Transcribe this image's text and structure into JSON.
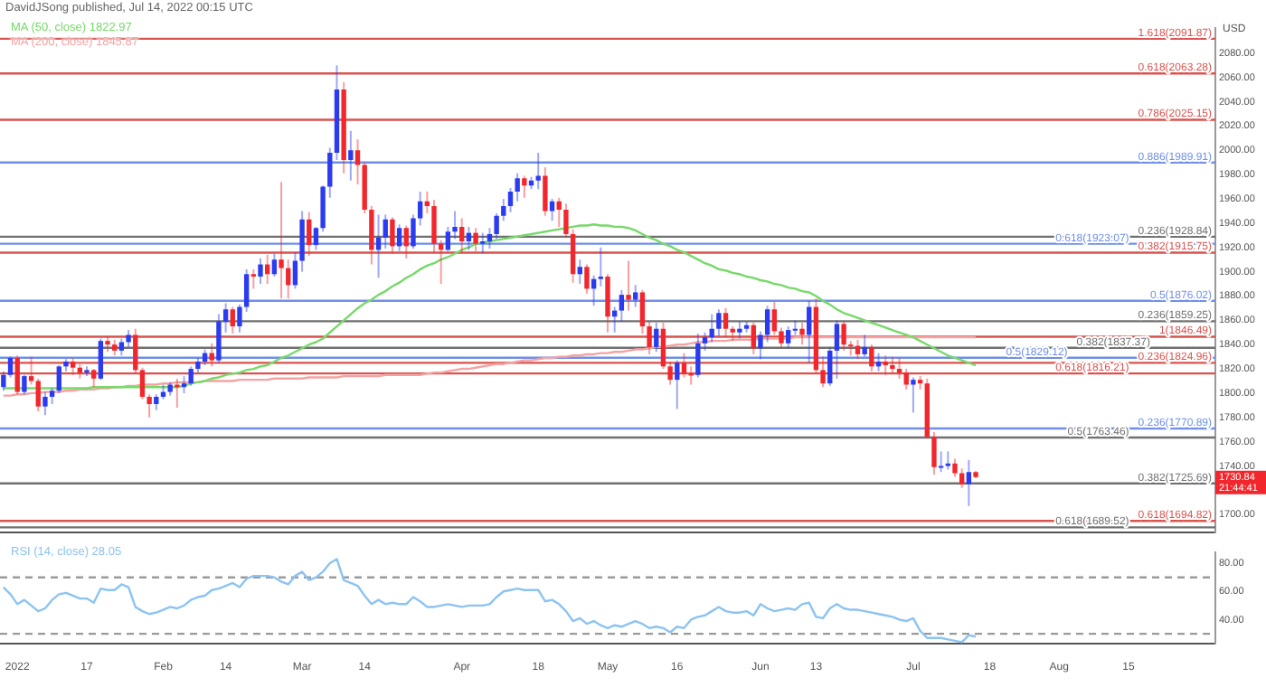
{
  "chart_data": [
    {
      "type": "candlestick",
      "title": "DavidJSong published, Jul 14, 2022 00:15 UTC",
      "ylabel": "USD",
      "tick_labels": "y",
      "legend": "top left",
      "grid": false,
      "categories": [
        null,
        null,
        "2022",
        null,
        null,
        null,
        null,
        null,
        null,
        null,
        null,
        null,
        "17",
        null,
        null,
        null,
        null,
        null,
        null,
        null,
        null,
        null,
        null,
        "Feb",
        null,
        null,
        null,
        null,
        null,
        null,
        null,
        null,
        "14",
        null,
        null,
        null,
        null,
        null,
        null,
        null,
        null,
        null,
        null,
        "Mar",
        null,
        null,
        null,
        null,
        null,
        null,
        null,
        null,
        "14",
        null,
        null,
        null,
        null,
        null,
        null,
        null,
        null,
        null,
        null,
        null,
        null,
        null,
        "Apr",
        null,
        null,
        null,
        null,
        null,
        null,
        null,
        null,
        null,
        null,
        "18",
        null,
        null,
        null,
        null,
        null,
        null,
        null,
        null,
        null,
        "May",
        null,
        null,
        null,
        null,
        null,
        null,
        null,
        null,
        null,
        "16",
        null,
        null,
        null,
        null,
        null,
        null,
        null,
        null,
        null,
        null,
        null,
        "Jun",
        null,
        null,
        null,
        null,
        null,
        null,
        null,
        "13",
        null,
        null,
        null,
        null,
        null,
        null,
        null,
        null,
        null,
        null,
        null,
        null,
        null,
        "Jul",
        null,
        null,
        null,
        null,
        null,
        null,
        null,
        null,
        null,
        null,
        "18",
        null,
        null,
        null,
        null,
        null,
        null,
        null,
        null,
        null,
        "Aug",
        null,
        null,
        null,
        null,
        null,
        null,
        null,
        null,
        null,
        "15",
        null,
        null,
        null,
        null,
        null,
        null,
        null,
        null,
        null,
        null,
        null,
        null
      ],
      "ohlc": [
        [
          1805,
          1818,
          1802,
          1815
        ],
        [
          1815,
          1830,
          1813,
          1829
        ],
        [
          1829,
          1831,
          1799,
          1801
        ],
        [
          1801,
          1815,
          1799,
          1814
        ],
        [
          1814,
          1830,
          1807,
          1810
        ],
        [
          1810,
          1812,
          1785,
          1789
        ],
        [
          1789,
          1801,
          1782,
          1797
        ],
        [
          1797,
          1804,
          1791,
          1802
        ],
        [
          1802,
          1823,
          1800,
          1822
        ],
        [
          1822,
          1828,
          1818,
          1826
        ],
        [
          1826,
          1829,
          1815,
          1821
        ],
        [
          1821,
          1824,
          1812,
          1817
        ],
        [
          1817,
          1822,
          1814,
          1819
        ],
        [
          1819,
          1820,
          1805,
          1812
        ],
        [
          1812,
          1845,
          1811,
          1843
        ],
        [
          1843,
          1847,
          1834,
          1840
        ],
        [
          1840,
          1844,
          1831,
          1835
        ],
        [
          1835,
          1845,
          1831,
          1842
        ],
        [
          1842,
          1852,
          1838,
          1848
        ],
        [
          1848,
          1853,
          1816,
          1819
        ],
        [
          1819,
          1821,
          1795,
          1797
        ],
        [
          1797,
          1799,
          1780,
          1791
        ],
        [
          1791,
          1799,
          1786,
          1797
        ],
        [
          1797,
          1807,
          1795,
          1801
        ],
        [
          1801,
          1809,
          1798,
          1807
        ],
        [
          1807,
          1812,
          1788,
          1805
        ],
        [
          1805,
          1814,
          1800,
          1808
        ],
        [
          1808,
          1822,
          1806,
          1820
        ],
        [
          1820,
          1829,
          1817,
          1826
        ],
        [
          1826,
          1836,
          1823,
          1833
        ],
        [
          1833,
          1841,
          1822,
          1827
        ],
        [
          1827,
          1865,
          1825,
          1859
        ],
        [
          1859,
          1874,
          1850,
          1869
        ],
        [
          1869,
          1871,
          1849,
          1855
        ],
        [
          1855,
          1873,
          1850,
          1871
        ],
        [
          1871,
          1902,
          1867,
          1898
        ],
        [
          1898,
          1902,
          1886,
          1896
        ],
        [
          1896,
          1911,
          1890,
          1906
        ],
        [
          1906,
          1914,
          1890,
          1898
        ],
        [
          1898,
          1915,
          1896,
          1910
        ],
        [
          1910,
          1974,
          1878,
          1903
        ],
        [
          1903,
          1910,
          1878,
          1889
        ],
        [
          1889,
          1916,
          1886,
          1909
        ],
        [
          1909,
          1950,
          1900,
          1943
        ],
        [
          1943,
          1949,
          1913,
          1922
        ],
        [
          1922,
          1937,
          1918,
          1936
        ],
        [
          1936,
          1971,
          1933,
          1970
        ],
        [
          1970,
          2002,
          1961,
          1998
        ],
        [
          1998,
          2070,
          1992,
          2050
        ],
        [
          2050,
          2056,
          1981,
          1992
        ],
        [
          1992,
          2016,
          1975,
          2000
        ],
        [
          2000,
          2009,
          1972,
          1988
        ],
        [
          1988,
          1990,
          1948,
          1951
        ],
        [
          1951,
          1954,
          1906,
          1918
        ],
        [
          1918,
          1947,
          1895,
          1928
        ],
        [
          1928,
          1947,
          1919,
          1943
        ],
        [
          1943,
          1945,
          1915,
          1921
        ],
        [
          1921,
          1939,
          1917,
          1936
        ],
        [
          1936,
          1938,
          1911,
          1921
        ],
        [
          1921,
          1947,
          1919,
          1944
        ],
        [
          1944,
          1966,
          1938,
          1958
        ],
        [
          1958,
          1966,
          1948,
          1954
        ],
        [
          1954,
          1959,
          1916,
          1923
        ],
        [
          1923,
          1926,
          1890,
          1918
        ],
        [
          1918,
          1937,
          1917,
          1933
        ],
        [
          1933,
          1950,
          1927,
          1937
        ],
        [
          1937,
          1944,
          1916,
          1925
        ],
        [
          1925,
          1937,
          1918,
          1932
        ],
        [
          1932,
          1936,
          1917,
          1923
        ],
        [
          1923,
          1932,
          1915,
          1925
        ],
        [
          1925,
          1936,
          1919,
          1931
        ],
        [
          1931,
          1948,
          1927,
          1946
        ],
        [
          1946,
          1960,
          1942,
          1954
        ],
        [
          1954,
          1969,
          1949,
          1966
        ],
        [
          1966,
          1981,
          1958,
          1977
        ],
        [
          1977,
          1979,
          1961,
          1971
        ],
        [
          1971,
          1978,
          1968,
          1975
        ],
        [
          1975,
          1998,
          1968,
          1979
        ],
        [
          1979,
          1986,
          1946,
          1950
        ],
        [
          1950,
          1960,
          1942,
          1958
        ],
        [
          1958,
          1961,
          1937,
          1951
        ],
        [
          1951,
          1956,
          1928,
          1931
        ],
        [
          1931,
          1935,
          1891,
          1898
        ],
        [
          1898,
          1910,
          1890,
          1904
        ],
        [
          1904,
          1906,
          1882,
          1886
        ],
        [
          1886,
          1897,
          1872,
          1894
        ],
        [
          1894,
          1920,
          1888,
          1896
        ],
        [
          1896,
          1898,
          1850,
          1863
        ],
        [
          1863,
          1871,
          1850,
          1868
        ],
        [
          1868,
          1885,
          1859,
          1881
        ],
        [
          1881,
          1909,
          1868,
          1877
        ],
        [
          1877,
          1889,
          1871,
          1883
        ],
        [
          1883,
          1885,
          1849,
          1855
        ],
        [
          1855,
          1859,
          1832,
          1838
        ],
        [
          1838,
          1858,
          1834,
          1853
        ],
        [
          1853,
          1858,
          1820,
          1822
        ],
        [
          1822,
          1826,
          1807,
          1811
        ],
        [
          1811,
          1827,
          1787,
          1825
        ],
        [
          1825,
          1833,
          1813,
          1816
        ],
        [
          1816,
          1822,
          1807,
          1815
        ],
        [
          1815,
          1849,
          1813,
          1841
        ],
        [
          1841,
          1850,
          1835,
          1846
        ],
        [
          1846,
          1865,
          1842,
          1853
        ],
        [
          1853,
          1869,
          1847,
          1866
        ],
        [
          1866,
          1870,
          1846,
          1853
        ],
        [
          1853,
          1855,
          1843,
          1850
        ],
        [
          1850,
          1859,
          1845,
          1853
        ],
        [
          1853,
          1859,
          1850,
          1856
        ],
        [
          1856,
          1858,
          1832,
          1837
        ],
        [
          1837,
          1851,
          1828,
          1848
        ],
        [
          1848,
          1872,
          1842,
          1869
        ],
        [
          1869,
          1875,
          1848,
          1851
        ],
        [
          1851,
          1854,
          1837,
          1841
        ],
        [
          1841,
          1855,
          1837,
          1852
        ],
        [
          1852,
          1860,
          1848,
          1853
        ],
        [
          1853,
          1858,
          1840,
          1848
        ],
        [
          1848,
          1876,
          1825,
          1871
        ],
        [
          1871,
          1878,
          1817,
          1819
        ],
        [
          1819,
          1830,
          1805,
          1808
        ],
        [
          1808,
          1838,
          1806,
          1835
        ],
        [
          1835,
          1860,
          1812,
          1857
        ],
        [
          1857,
          1859,
          1835,
          1840
        ],
        [
          1840,
          1843,
          1831,
          1839
        ],
        [
          1839,
          1844,
          1828,
          1832
        ],
        [
          1832,
          1848,
          1830,
          1838
        ],
        [
          1838,
          1840,
          1818,
          1822
        ],
        [
          1822,
          1833,
          1818,
          1826
        ],
        [
          1826,
          1831,
          1815,
          1823
        ],
        [
          1823,
          1830,
          1816,
          1820
        ],
        [
          1820,
          1829,
          1812,
          1817
        ],
        [
          1817,
          1820,
          1803,
          1807
        ],
        [
          1807,
          1813,
          1784,
          1811
        ],
        [
          1811,
          1814,
          1803,
          1808
        ],
        [
          1808,
          1812,
          1763,
          1764
        ],
        [
          1764,
          1768,
          1733,
          1739
        ],
        [
          1739,
          1752,
          1735,
          1740
        ],
        [
          1740,
          1752,
          1737,
          1742
        ],
        [
          1742,
          1746,
          1731,
          1734
        ],
        [
          1734,
          1738,
          1722,
          1725
        ],
        [
          1725,
          1745,
          1707,
          1735
        ],
        [
          1735,
          1736,
          1730,
          1730.84
        ],
        null,
        null,
        null,
        null,
        null,
        null,
        null,
        null,
        null,
        null,
        null,
        null,
        null,
        null,
        null,
        null,
        null,
        null,
        null,
        null,
        null,
        null,
        null,
        null,
        null,
        null,
        null,
        null,
        null,
        null,
        null,
        null,
        null,
        null
      ],
      "colors": [
        "#2b3bf0",
        "#2b3bf0",
        "#f2272d",
        "#2b3bf0",
        "#f2272d",
        "#f2272d",
        "#2b3bf0",
        "#2b3bf0",
        "#2b3bf0",
        "#2b3bf0",
        "#f2272d",
        "#f2272d",
        "#2b3bf0",
        "#f2272d",
        "#2b3bf0",
        "#f2272d",
        "#f2272d",
        "#2b3bf0",
        "#2b3bf0",
        "#f2272d",
        "#f2272d",
        "#f2272d",
        "#2b3bf0",
        "#2b3bf0",
        "#2b3bf0",
        "#f2272d",
        "#2b3bf0",
        "#2b3bf0",
        "#2b3bf0",
        "#2b3bf0",
        "#f2272d",
        "#2b3bf0",
        "#2b3bf0",
        "#f2272d",
        "#2b3bf0",
        "#2b3bf0",
        "#f2272d",
        "#2b3bf0",
        "#f2272d",
        "#2b3bf0",
        "#f2272d",
        "#f2272d",
        "#2b3bf0",
        "#2b3bf0",
        "#f2272d",
        "#2b3bf0",
        "#2b3bf0",
        "#2b3bf0",
        "#2b3bf0",
        "#f2272d",
        "#2b3bf0",
        "#f2272d",
        "#f2272d",
        "#f2272d",
        "#2b3bf0",
        "#2b3bf0",
        "#f2272d",
        "#2b3bf0",
        "#f2272d",
        "#2b3bf0",
        "#2b3bf0",
        "#f2272d",
        "#f2272d",
        "#f2272d",
        "#2b3bf0",
        "#2b3bf0",
        "#f2272d",
        "#2b3bf0",
        "#f2272d",
        "#2b3bf0",
        "#2b3bf0",
        "#2b3bf0",
        "#2b3bf0",
        "#2b3bf0",
        "#2b3bf0",
        "#f2272d",
        "#2b3bf0",
        "#2b3bf0",
        "#f2272d",
        "#2b3bf0",
        "#f2272d",
        "#f2272d",
        "#f2272d",
        "#2b3bf0",
        "#f2272d",
        "#2b3bf0",
        "#2b3bf0",
        "#f2272d",
        "#2b3bf0",
        "#2b3bf0",
        "#f2272d",
        "#2b3bf0",
        "#f2272d",
        "#f2272d",
        "#2b3bf0",
        "#f2272d",
        "#f2272d",
        "#2b3bf0",
        "#f2272d",
        "#f2272d",
        "#2b3bf0",
        "#2b3bf0",
        "#2b3bf0",
        "#2b3bf0",
        "#f2272d",
        "#f2272d",
        "#2b3bf0",
        "#2b3bf0",
        "#f2272d",
        "#2b3bf0",
        "#2b3bf0",
        "#f2272d",
        "#f2272d",
        "#2b3bf0",
        "#2b3bf0",
        "#f2272d",
        "#2b3bf0",
        "#f2272d",
        "#f2272d",
        "#2b3bf0",
        "#2b3bf0",
        "#f2272d",
        "#f2272d",
        "#f2272d",
        "#2b3bf0",
        "#f2272d",
        "#2b3bf0",
        "#f2272d",
        "#f2272d",
        "#f2272d",
        "#f2272d",
        "#2b3bf0",
        "#f2272d",
        "#f2272d",
        "#f2272d",
        "#2b3bf0",
        "#2b3bf0",
        "#f2272d",
        "#f2272d",
        "#2b3bf0",
        "#f2272d",
        null,
        null,
        null,
        null,
        null,
        null,
        null,
        null,
        null,
        null,
        null,
        null,
        null,
        null,
        null,
        null,
        null,
        null,
        null,
        null,
        null,
        null,
        null,
        null,
        null,
        null,
        null,
        null,
        null,
        null,
        null,
        null,
        null,
        null
      ],
      "series": [
        {
          "type": "line",
          "name": "MA (50, close) 1822.97",
          "color": "#77d96a",
          "values": [
            1804,
            1804,
            1804,
            1804,
            1804,
            1804,
            1804,
            1804,
            1804,
            1804,
            1804,
            1804,
            1804,
            1805,
            1805,
            1805,
            1805,
            1805,
            1805,
            1805,
            1805,
            1805,
            1805,
            1805,
            1805,
            1805,
            1806,
            1808,
            1809,
            1810,
            1812,
            1813,
            1815,
            1816,
            1817,
            1819,
            1820,
            1822,
            1823,
            1826,
            1829,
            1831,
            1834,
            1837,
            1840,
            1842,
            1845,
            1850,
            1855,
            1860,
            1865,
            1870,
            1874,
            1877,
            1881,
            1884,
            1888,
            1891,
            1895,
            1898,
            1902,
            1905,
            1907,
            1910,
            1912,
            1915,
            1918,
            1920,
            1923,
            1924,
            1925,
            1926,
            1927,
            1928,
            1929,
            1930,
            1931,
            1932,
            1933,
            1934,
            1935,
            1936,
            1937,
            1938,
            1938,
            1939,
            1938,
            1938,
            1937,
            1937,
            1936,
            1934,
            1931,
            1928,
            1926,
            1923,
            1921,
            1918,
            1916,
            1913,
            1910,
            1907,
            1905,
            1902,
            1901,
            1899,
            1898,
            1896,
            1895,
            1893,
            1892,
            1890,
            1889,
            1887,
            1886,
            1884,
            1883,
            1880,
            1876,
            1873,
            1869,
            1866,
            1864,
            1862,
            1860,
            1858,
            1856,
            1854,
            1852,
            1850,
            1848,
            1846,
            1843,
            1840,
            1837,
            1834,
            1831,
            1829,
            1827,
            1825,
            1823,
            null,
            null,
            null,
            null,
            null,
            null,
            null,
            null,
            null,
            null,
            null,
            null,
            null,
            null,
            null,
            null,
            null,
            null,
            null,
            null,
            null,
            null,
            null,
            null,
            null,
            null,
            null,
            null,
            null,
            null,
            null,
            null,
            null,
            null
          ]
        },
        {
          "type": "line",
          "name": "MA (200, close) 1845.87",
          "color": "#f4a3a3",
          "values": [
            1798,
            1798,
            1799,
            1799,
            1800,
            1800,
            1801,
            1801,
            1801,
            1802,
            1802,
            1803,
            1803,
            1803,
            1804,
            1804,
            1805,
            1805,
            1806,
            1806,
            1807,
            1807,
            1807,
            1808,
            1808,
            1809,
            1809,
            1809,
            1809,
            1810,
            1810,
            1810,
            1810,
            1810,
            1811,
            1811,
            1811,
            1811,
            1811,
            1812,
            1812,
            1812,
            1812,
            1812,
            1813,
            1813,
            1813,
            1813,
            1813,
            1814,
            1814,
            1814,
            1814,
            1814,
            1814,
            1815,
            1815,
            1815,
            1815,
            1815,
            1815,
            1816,
            1817,
            1817,
            1818,
            1819,
            1820,
            1820,
            1821,
            1822,
            1823,
            1824,
            1824,
            1825,
            1826,
            1827,
            1827,
            1828,
            1829,
            1829,
            1830,
            1830,
            1831,
            1831,
            1832,
            1832,
            1833,
            1833,
            1834,
            1834,
            1835,
            1836,
            1836,
            1837,
            1838,
            1838,
            1839,
            1840,
            1840,
            1841,
            1842,
            1842,
            1843,
            1843,
            1843,
            1844,
            1844,
            1844,
            1844,
            1845,
            1845,
            1845,
            1845,
            1845,
            1846,
            1846,
            1846,
            1846,
            1846,
            1846,
            1846,
            1846,
            1846,
            1846,
            1846,
            1846,
            1846,
            1846,
            1846,
            1846,
            1846,
            1846,
            1846,
            1846,
            1846,
            1846,
            1846,
            1846,
            1846,
            1846,
            1846,
            null,
            null,
            null,
            null,
            null,
            null,
            null,
            null,
            null,
            null,
            null,
            null,
            null,
            null,
            null,
            null,
            null,
            null,
            null,
            null,
            null,
            null,
            null,
            null,
            null,
            null,
            null,
            null,
            null,
            null,
            null,
            null,
            null,
            null
          ]
        }
      ],
      "ylim": [
        1685,
        2101
      ],
      "yticks": [
        {
          "value": 1700,
          "label": "1700.00"
        },
        {
          "value": 1740,
          "label": "1740.00"
        },
        {
          "value": 1760,
          "label": "1760.00"
        },
        {
          "value": 1780,
          "label": "1780.00"
        },
        {
          "value": 1800,
          "label": "1800.00"
        },
        {
          "value": 1820,
          "label": "1820.00"
        },
        {
          "value": 1840,
          "label": "1840.00"
        },
        {
          "value": 1860,
          "label": "1860.00"
        },
        {
          "value": 1880,
          "label": "1880.00"
        },
        {
          "value": 1900,
          "label": "1900.00"
        },
        {
          "value": 1920,
          "label": "1920.00"
        },
        {
          "value": 1940,
          "label": "1940.00"
        },
        {
          "value": 1960,
          "label": "1960.00"
        },
        {
          "value": 1980,
          "label": "1980.00"
        },
        {
          "value": 2000,
          "label": "2000.00"
        },
        {
          "value": 2020,
          "label": "2020.00"
        },
        {
          "value": 2040,
          "label": "2040.00"
        },
        {
          "value": 2060,
          "label": "2060.00"
        },
        {
          "value": 2080,
          "label": "2080.00"
        }
      ],
      "ref_lines": [
        {
          "axis": "y",
          "value": 2091.87,
          "label": "1.618(2091.87)",
          "color": "#d9534f"
        },
        {
          "axis": "y",
          "value": 2063.28,
          "label": "0.618(2063.28)",
          "color": "#d9534f"
        },
        {
          "axis": "y",
          "value": 2025.15,
          "label": "0.786(2025.15)",
          "color": "#d9534f"
        },
        {
          "axis": "y",
          "value": 1989.91,
          "label": "0.886(1989.91)",
          "color": "#6f8fe8"
        },
        {
          "axis": "y",
          "value": 1928.84,
          "label": "0.236(1928.84)",
          "color": "#707070"
        },
        {
          "axis": "y",
          "value": 1923.07,
          "label": "0.618(1923.07)",
          "color": "#6f8fe8"
        },
        {
          "axis": "y",
          "value": 1915.75,
          "label": "0.382(1915.75)",
          "color": "#d9534f"
        },
        {
          "axis": "y",
          "value": 1876.02,
          "label": "0.5(1876.02)",
          "color": "#6f8fe8"
        },
        {
          "axis": "y",
          "value": 1859.25,
          "label": "0.236(1859.25)",
          "color": "#707070"
        },
        {
          "axis": "y",
          "value": 1846.49,
          "label": "1(1846.49)",
          "color": "#d9534f"
        },
        {
          "axis": "y",
          "value": 1837.37,
          "label": "0.382(1837.37)",
          "color": "#707070"
        },
        {
          "axis": "y",
          "value": 1829.12,
          "label": "0.5(1829.12)",
          "color": "#6f8fe8"
        },
        {
          "axis": "y",
          "value": 1824.96,
          "label": "0.236(1824.96)",
          "color": "#d9534f"
        },
        {
          "axis": "y",
          "value": 1816.21,
          "label": "0.618(1816.21)",
          "color": "#d9534f"
        },
        {
          "axis": "y",
          "value": 1770.89,
          "label": "0.236(1770.89)",
          "color": "#6f8fe8"
        },
        {
          "axis": "y",
          "value": 1763.46,
          "label": "0.5(1763.46)",
          "color": "#707070"
        },
        {
          "axis": "y",
          "value": 1725.69,
          "label": "0.382(1725.69)",
          "color": "#707070"
        },
        {
          "axis": "y",
          "value": 1694.82,
          "label": "0.618(1694.82)",
          "color": "#d9534f"
        },
        {
          "axis": "y",
          "value": 1689.52,
          "label": "0.618(1689.52)",
          "color": "#707070"
        }
      ],
      "annotations": [
        "1730.84",
        "21:44:41"
      ]
    },
    {
      "type": "line",
      "legend": "top left",
      "grid": false,
      "series": [
        {
          "name": "RSI (14, close) 28.05",
          "color": "#8cc3f2",
          "values": [
            63,
            58,
            51,
            54,
            50,
            46,
            48,
            54,
            58,
            59,
            57,
            55,
            55,
            52,
            62,
            61,
            61,
            65,
            63,
            49,
            46,
            44,
            45,
            47,
            49,
            48,
            50,
            54,
            56,
            57,
            61,
            62,
            64,
            66,
            63,
            69,
            71,
            71,
            71,
            70,
            67,
            65,
            71,
            74,
            68,
            70,
            74,
            80,
            83,
            68,
            66,
            64,
            57,
            51,
            54,
            51,
            52,
            51,
            51,
            56,
            53,
            49,
            49,
            50,
            51,
            50,
            49,
            50,
            50,
            50,
            51,
            56,
            60,
            61,
            62,
            61,
            61,
            61,
            53,
            54,
            51,
            46,
            39,
            41,
            37,
            39,
            36,
            34,
            36,
            35,
            37,
            39,
            37,
            34,
            35,
            34,
            31,
            35,
            34,
            40,
            42,
            43,
            46,
            49,
            46,
            45,
            45,
            46,
            43,
            51,
            48,
            46,
            47,
            48,
            47,
            51,
            52,
            42,
            41,
            48,
            51,
            48,
            47,
            47,
            46,
            45,
            44,
            43,
            42,
            40,
            39,
            41,
            32,
            27,
            27,
            27,
            26,
            25,
            24,
            29,
            28,
            null,
            null,
            null,
            null,
            null,
            null,
            null,
            null,
            null,
            null,
            null,
            null,
            null,
            null,
            null,
            null,
            null,
            null,
            null,
            null,
            null,
            null,
            null,
            null,
            null,
            null,
            null,
            null,
            null,
            null,
            null,
            null,
            null,
            null
          ]
        }
      ],
      "ylim": [
        23,
        88
      ],
      "yticks": [
        {
          "value": 40,
          "label": "40.00"
        },
        {
          "value": 60,
          "label": "60.00"
        },
        {
          "value": 80,
          "label": "80.00"
        }
      ],
      "ref_lines": [
        {
          "axis": "y",
          "value": 70,
          "color": "#9a9a9a",
          "line_style": "dashed"
        },
        {
          "axis": "y",
          "value": 30,
          "color": "#9a9a9a",
          "line_style": "dashed"
        }
      ]
    }
  ]
}
